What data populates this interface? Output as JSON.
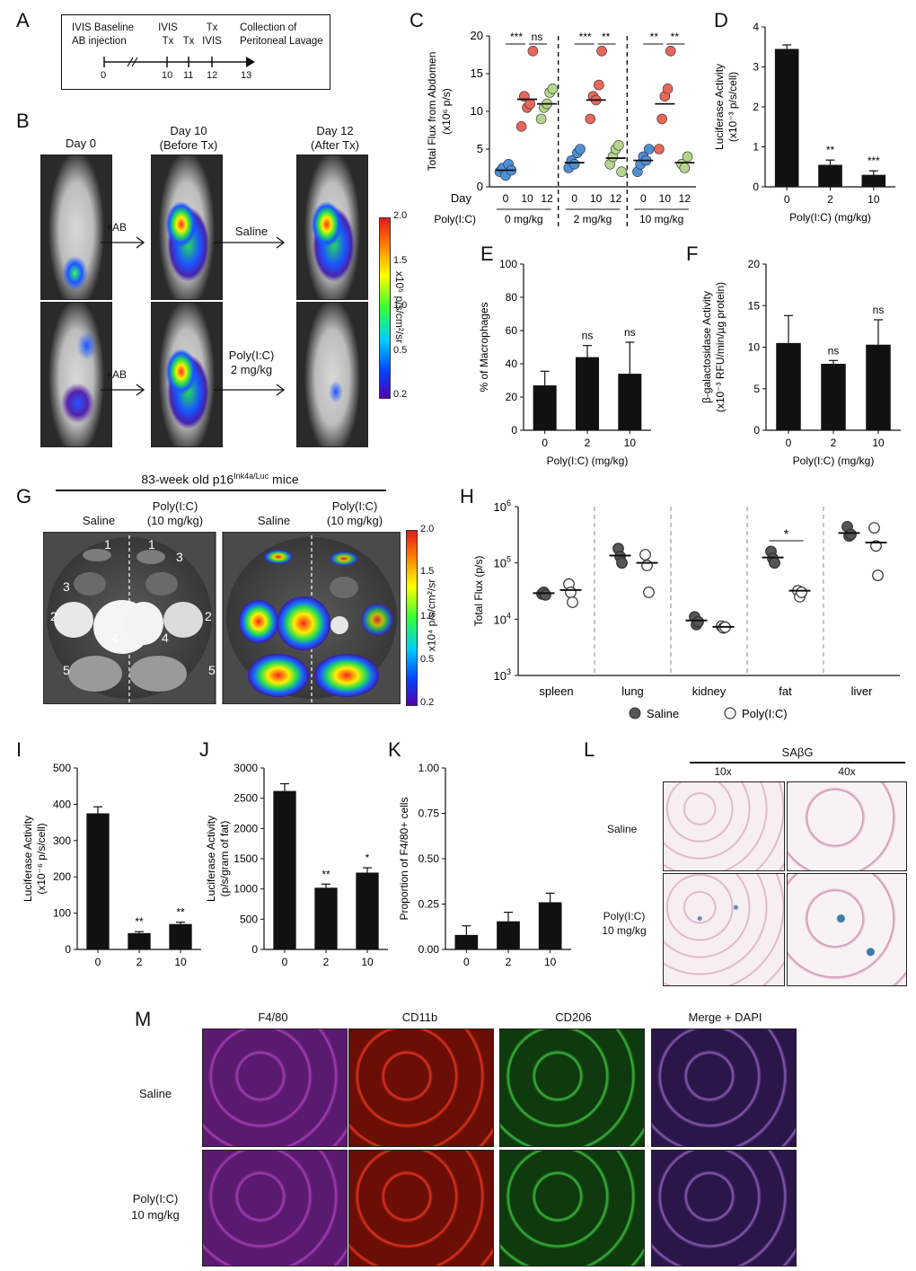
{
  "panel_labels": [
    "A",
    "B",
    "C",
    "D",
    "E",
    "F",
    "G",
    "H",
    "I",
    "J",
    "K",
    "L",
    "M"
  ],
  "colors": {
    "bar": "#111111",
    "saline_dot": "#555555",
    "c_blue": "#4f8fd6",
    "c_red": "#e8665a",
    "c_green": "#b5d68c",
    "dash": "#888888"
  },
  "panelA": {
    "events": [
      {
        "day": "0",
        "label_lines": [
          "IVIS Baseline",
          "AB injection"
        ]
      },
      {
        "day": "10",
        "label_lines": [
          "IVIS",
          "Tx"
        ]
      },
      {
        "day": "11",
        "label_lines": [
          "Tx"
        ]
      },
      {
        "day": "12",
        "label_lines": [
          "Tx",
          "IVIS"
        ]
      },
      {
        "day": "13",
        "label_lines": [
          "Collection of",
          "Peritoneal Lavage"
        ]
      }
    ]
  },
  "panelB": {
    "col_titles": [
      [
        "Day 0"
      ],
      [
        "Day 10",
        "(Before Tx)"
      ],
      [
        "Day 12",
        "(After Tx)"
      ]
    ],
    "arrow_ab": "+AB",
    "row1_treatment": "Saline",
    "row2_treatment": [
      "Poly(I:C)",
      "2 mg/kg"
    ],
    "colorbar_ticks": [
      "2.0",
      "1.5",
      "1.0",
      "0.5",
      "0.2"
    ],
    "colorbar_unit": "x10⁵ p/s/cm²/sr"
  },
  "panelG": {
    "title": "83-week old p16Ink4a/Luc mice",
    "title_main": "83-week old p16",
    "title_sup": "Ink4a/Luc",
    "title_end": " mice",
    "group_saline": "Saline",
    "group_polyic": [
      "Poly(I:C)",
      "(10 mg/kg)"
    ],
    "organ_numbers": [
      "1",
      "2",
      "3",
      "4",
      "5"
    ],
    "colorbar_ticks": [
      "2.0",
      "1.5",
      "1.0",
      "0.5",
      "0.2"
    ],
    "colorbar_unit": "x10⁴ p/s/cm²/sr"
  },
  "panelL": {
    "title": "SAβG",
    "mag": [
      "10x",
      "40x"
    ],
    "rows": [
      "Saline",
      "Poly(I:C)",
      "10 mg/kg"
    ]
  },
  "panelM": {
    "columns": [
      "F4/80",
      "CD11b",
      "CD206",
      "Merge + DAPI"
    ],
    "rows": [
      "Saline",
      "Poly(I:C)",
      "10 mg/kg"
    ]
  },
  "chart_data": [
    {
      "id": "C",
      "type": "scatter",
      "ylabel": [
        "Total Flux from Abdomen",
        "(x10⁶ p/s)"
      ],
      "ylim": [
        0,
        20
      ],
      "yticks": [
        0,
        5,
        10,
        15,
        20
      ],
      "xlabel_row_day": "Day",
      "xlabel_row_group": "Poly(I:C)",
      "groups": [
        {
          "name": "0 mg/kg",
          "days": [
            "0",
            "10",
            "12"
          ],
          "points": [
            [
              2.0,
              2.5,
              1.5,
              3.0,
              2.2
            ],
            [
              8.0,
              12.0,
              10.5,
              11.0,
              18.0
            ],
            [
              9.0,
              10.5,
              11.0,
              12.5,
              13.0
            ]
          ],
          "means": [
            2.2,
            11.6,
            11.0
          ],
          "sig": [
            "***",
            "ns"
          ]
        },
        {
          "name": "2 mg/kg",
          "days": [
            "0",
            "10",
            "12"
          ],
          "points": [
            [
              2.5,
              3.5,
              3.0,
              4.5,
              5.0
            ],
            [
              9.0,
              12.0,
              11.5,
              13.5,
              18.0
            ],
            [
              3.0,
              4.0,
              5.0,
              5.5,
              2.0
            ]
          ],
          "means": [
            3.2,
            11.5,
            3.8
          ],
          "sig": [
            "***",
            "**"
          ]
        },
        {
          "name": "10 mg/kg",
          "days": [
            "0",
            "10",
            "12"
          ],
          "points": [
            [
              2.0,
              3.0,
              4.0,
              3.5,
              5.0
            ],
            [
              5.0,
              9.0,
              12.0,
              13.0,
              18.0
            ],
            [
              3.0,
              2.5,
              4.0
            ]
          ],
          "means": [
            3.5,
            11.0,
            3.2
          ],
          "sig": [
            "**",
            "**"
          ]
        }
      ]
    },
    {
      "id": "D",
      "type": "bar",
      "categories": [
        "0",
        "2",
        "10"
      ],
      "values": [
        3.45,
        0.55,
        0.3
      ],
      "errors": [
        0.1,
        0.12,
        0.1
      ],
      "sig": [
        "",
        "**",
        "***"
      ],
      "ylabel": [
        "Luciferase Activity",
        "(x10⁻³ p/s/cell)"
      ],
      "xlabel": "Poly(I:C) (mg/kg)",
      "ylim": [
        0,
        4
      ],
      "yticks": [
        0,
        1,
        2,
        3,
        4
      ]
    },
    {
      "id": "E",
      "type": "bar",
      "categories": [
        "0",
        "2",
        "10"
      ],
      "values": [
        27,
        44,
        34
      ],
      "errors": [
        8.5,
        7,
        19
      ],
      "sig": [
        "",
        "ns",
        "ns"
      ],
      "ylabel": [
        "% of Macrophages"
      ],
      "xlabel": "Poly(I:C) (mg/kg)",
      "ylim": [
        0,
        100
      ],
      "yticks": [
        0,
        20,
        40,
        60,
        80,
        100
      ]
    },
    {
      "id": "F",
      "type": "bar",
      "categories": [
        "0",
        "2",
        "10"
      ],
      "values": [
        10.5,
        8.0,
        10.3
      ],
      "errors": [
        3.3,
        0.4,
        3.0
      ],
      "sig": [
        "",
        "ns",
        "ns"
      ],
      "ylabel": [
        "β-galactosidase Activity",
        "(x10⁻³ RFU/min/µg protein)"
      ],
      "xlabel": "Poly(I:C) (mg/kg)",
      "ylim": [
        0,
        20
      ],
      "yticks": [
        0,
        5,
        10,
        15,
        20
      ]
    },
    {
      "id": "H",
      "type": "scatter",
      "yscale": "log",
      "categories": [
        "spleen",
        "lung",
        "kidney",
        "fat",
        "liver"
      ],
      "ylabel": [
        "Total Flux (p/s)"
      ],
      "ytick_bases": [
        "10",
        "10",
        "10",
        "10"
      ],
      "ytick_exps": [
        "3",
        "4",
        "5",
        "6"
      ],
      "legend": [
        "Saline",
        "Poly(I:C)"
      ],
      "series": [
        {
          "name": "Saline",
          "points": [
            [
              28000,
              30000,
              27000
            ],
            [
              180000,
              130000,
              100000
            ],
            [
              11000,
              8000,
              9000
            ],
            [
              160000,
              120000,
              100000
            ],
            [
              440000,
              300000,
              320000
            ]
          ],
          "means": [
            29000,
            135000,
            9500,
            125000,
            340000
          ]
        },
        {
          "name": "Poly(I:C)",
          "points": [
            [
              42000,
              30000,
              20000
            ],
            [
              140000,
              90000,
              30000
            ],
            [
              7500,
              7000,
              7200
            ],
            [
              32000,
              25000,
              30000
            ],
            [
              420000,
              200000,
              60000
            ]
          ],
          "means": [
            33000,
            100000,
            7300,
            32000,
            230000
          ]
        }
      ],
      "sig": {
        "category": "fat",
        "label": "*"
      }
    },
    {
      "id": "I",
      "type": "bar",
      "categories": [
        "0",
        "2",
        "10"
      ],
      "values": [
        375,
        45,
        70
      ],
      "errors": [
        18,
        4,
        5
      ],
      "sig": [
        "",
        "**",
        "**"
      ],
      "ylabel": [
        "Luciferase Activity",
        "(x10⁻⁶ p/s/cell)"
      ],
      "xlabel": "Poly(I:C) (mg/kg)",
      "ylim": [
        0,
        500
      ],
      "yticks": [
        0,
        100,
        200,
        300,
        400,
        500
      ]
    },
    {
      "id": "J",
      "type": "bar",
      "categories": [
        "0",
        "2",
        "10"
      ],
      "values": [
        2620,
        1020,
        1270
      ],
      "errors": [
        120,
        60,
        80
      ],
      "sig": [
        "",
        "**",
        "*"
      ],
      "ylabel": [
        "Luciferase Activity",
        "(p/s/gram of fat)"
      ],
      "xlabel": "Poly(I:C) (mg/kg)",
      "ylim": [
        0,
        3000
      ],
      "yticks": [
        0,
        500,
        1000,
        1500,
        2000,
        2500,
        3000
      ]
    },
    {
      "id": "K",
      "type": "bar",
      "categories": [
        "0",
        "2",
        "10"
      ],
      "values": [
        0.08,
        0.155,
        0.26
      ],
      "errors": [
        0.05,
        0.05,
        0.05
      ],
      "sig": [
        "",
        "",
        ""
      ],
      "ylabel": [
        "Proportion of F4/80+ cells"
      ],
      "xlabel": "Poly(I:C) (mg/kg)",
      "ylim": [
        0,
        1
      ],
      "yticks": [
        "0.00",
        "0.25",
        "0.50",
        "0.75",
        "1.00"
      ]
    }
  ]
}
